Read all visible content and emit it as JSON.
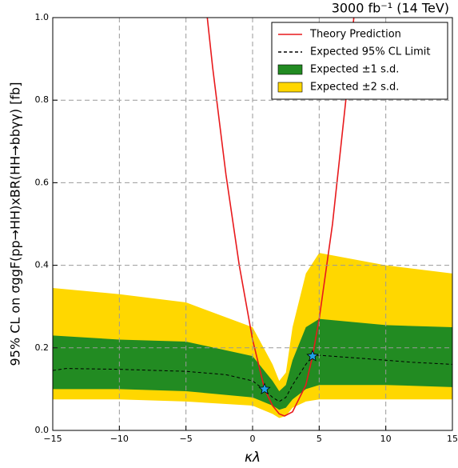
{
  "chart_data": {
    "type": "line",
    "title": "3000 fb⁻¹ (14 TeV)",
    "x_label": "κλ",
    "y_label": "95% CL on σggF(pp→HH)xBR(HH→bbγγ) [fb]",
    "xlim": [
      -15,
      15
    ],
    "ylim": [
      0,
      1
    ],
    "xticks": [
      {
        "value": -15,
        "label": "−15"
      },
      {
        "value": -10,
        "label": "−10"
      },
      {
        "value": -5,
        "label": "−5"
      },
      0,
      5,
      10,
      15
    ],
    "yticks": [
      {
        "value": 0,
        "label": "0.0"
      },
      0.2,
      0.4,
      0.6,
      0.8,
      {
        "value": 1,
        "label": "1.0"
      }
    ],
    "grid": true,
    "legend": "upper right",
    "series": [
      {
        "name": "Theory Prediction",
        "color": "#e8191c",
        "style": "solid",
        "x": [
          -3.4,
          -3,
          -2,
          -1,
          0,
          0.9,
          1.5,
          2,
          2.4,
          3,
          4,
          4.5,
          5,
          6,
          7,
          7.6
        ],
        "values": [
          1.0,
          0.88,
          0.62,
          0.4,
          0.22,
          0.1,
          0.06,
          0.04,
          0.035,
          0.045,
          0.11,
          0.18,
          0.27,
          0.5,
          0.8,
          1.0
        ]
      },
      {
        "name": "Expected 95% CL Limit",
        "color": "#000000",
        "style": "dashed",
        "x": [
          -15,
          -14,
          -10,
          -5,
          -2,
          0,
          1,
          1.5,
          2,
          2.5,
          3,
          4,
          4.5,
          5,
          8,
          12,
          15
        ],
        "values": [
          0.145,
          0.15,
          0.148,
          0.143,
          0.135,
          0.12,
          0.095,
          0.08,
          0.07,
          0.08,
          0.11,
          0.16,
          0.18,
          0.182,
          0.175,
          0.165,
          0.16
        ]
      }
    ],
    "bands": [
      {
        "name": "Expected ±2 s.d.",
        "color": "#ffd700",
        "x": [
          -15,
          -10,
          -5,
          0,
          1.5,
          2,
          2.5,
          3,
          4,
          5,
          10,
          15
        ],
        "lower": [
          0.075,
          0.075,
          0.07,
          0.06,
          0.04,
          0.03,
          0.035,
          0.055,
          0.07,
          0.075,
          0.075,
          0.075
        ],
        "upper": [
          0.345,
          0.33,
          0.31,
          0.25,
          0.16,
          0.12,
          0.14,
          0.25,
          0.38,
          0.43,
          0.4,
          0.38
        ]
      },
      {
        "name": "Expected ±1 s.d.",
        "color": "#228b22",
        "x": [
          -15,
          -10,
          -5,
          0,
          1.5,
          2,
          2.5,
          3,
          4,
          5,
          10,
          15
        ],
        "lower": [
          0.1,
          0.1,
          0.095,
          0.08,
          0.06,
          0.05,
          0.055,
          0.075,
          0.1,
          0.11,
          0.11,
          0.105
        ],
        "upper": [
          0.23,
          0.22,
          0.215,
          0.18,
          0.12,
          0.095,
          0.11,
          0.17,
          0.25,
          0.27,
          0.255,
          0.25
        ]
      }
    ],
    "markers": {
      "color": "#1ea0e6",
      "x": [
        0.9,
        4.5
      ],
      "values": [
        0.1,
        0.18
      ]
    }
  }
}
